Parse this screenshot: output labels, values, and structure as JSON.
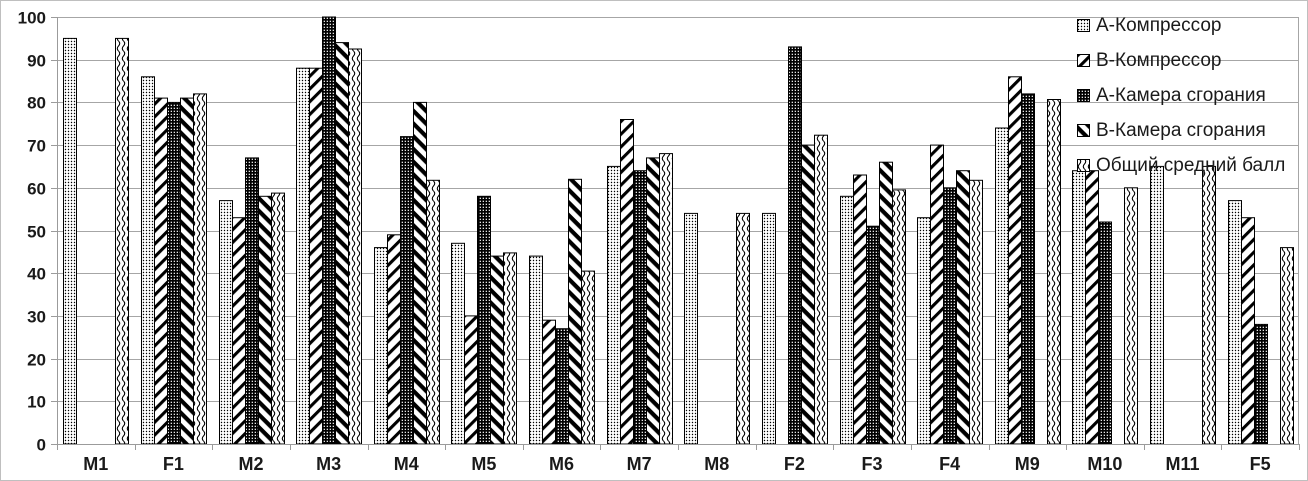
{
  "chart_data": {
    "type": "bar",
    "title": "",
    "xlabel": "",
    "ylabel": "",
    "ylim": [
      0,
      100
    ],
    "ytick_step": 10,
    "yticks": [
      0,
      10,
      20,
      30,
      40,
      50,
      60,
      70,
      80,
      90,
      100
    ],
    "grid": true,
    "legend_position": "top-right",
    "categories": [
      "M1",
      "F1",
      "M2",
      "M3",
      "M4",
      "M5",
      "M6",
      "M7",
      "M8",
      "F2",
      "F3",
      "F4",
      "M9",
      "M10",
      "M11",
      "F5"
    ],
    "series": [
      {
        "name": "А-Компрессор",
        "pattern": "fine-dots",
        "values": [
          95,
          86,
          57,
          88,
          46,
          47,
          44,
          65,
          54,
          54,
          58,
          53,
          74,
          64,
          65,
          57
        ]
      },
      {
        "name": "В-Компрессор",
        "pattern": "diagonal-up",
        "values": [
          null,
          81,
          53,
          88,
          49,
          30,
          29,
          76,
          null,
          null,
          63,
          70,
          86,
          64,
          null,
          53
        ]
      },
      {
        "name": "А-Камера сгорания",
        "pattern": "dense-grid",
        "values": [
          null,
          80,
          67,
          100,
          72,
          58,
          27,
          64,
          null,
          93,
          51,
          60,
          82,
          52,
          null,
          28
        ]
      },
      {
        "name": "В-Камера сгорания",
        "pattern": "diagonal-down",
        "values": [
          null,
          81,
          58,
          94,
          80,
          44,
          62,
          67,
          null,
          70,
          66,
          64,
          null,
          null,
          null,
          null
        ]
      },
      {
        "name": "Общий средний балл",
        "pattern": "vertical-wave",
        "values": [
          95,
          82,
          58.75,
          92.5,
          61.75,
          44.75,
          40.5,
          68,
          54,
          72.33,
          59.5,
          61.75,
          80.67,
          60,
          65,
          46
        ]
      }
    ]
  },
  "colors": {
    "background": "#ffffff",
    "frame_border": "#bfbfbf",
    "gridline": "#a6a6a6",
    "axis": "#9b9b9b",
    "tick_label": "#1a1a1a",
    "bar_ink": "#000000"
  }
}
